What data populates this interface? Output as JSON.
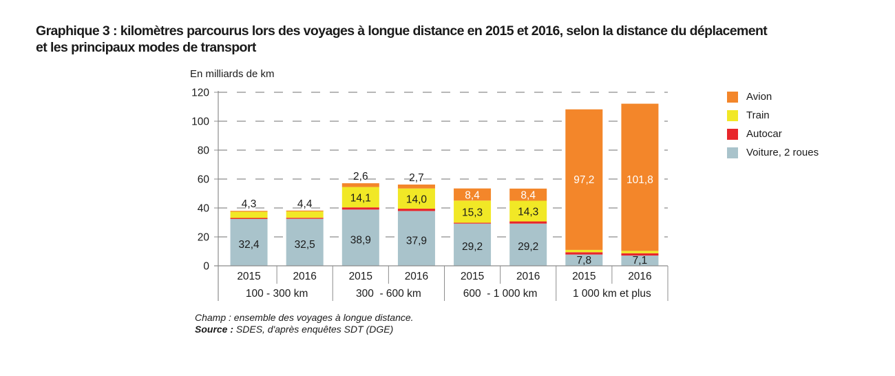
{
  "title": {
    "line1": "Graphique 3 : kilomètres parcourus lors des voyages à longue distance en 2015 et 2016, selon la distance du déplacement",
    "line2": "et les principaux modes de transport"
  },
  "notes": {
    "champ": "Champ : ensemble des voyages à longue distance.",
    "source_label": "Source :",
    "source_text": " SDES, d'après enquêtes SDT (DGE)"
  },
  "chart_data": {
    "type": "bar",
    "stacked": true,
    "title": "Graphique 3 : kilomètres parcourus lors des voyages à longue distance en 2015 et 2016, selon la distance du déplacement et les principaux modes de transport",
    "ylabel": "En milliards de km",
    "xlabel": "",
    "ylim": [
      0,
      120
    ],
    "yticks": [
      0,
      20,
      40,
      60,
      80,
      100,
      120
    ],
    "grid": true,
    "legend_position": "right",
    "groups": [
      "100 - 300 km",
      "300  - 600 km",
      "600  - 1 000 km",
      "1 000 km et plus"
    ],
    "categories": [
      "2015",
      "2016",
      "2015",
      "2016",
      "2015",
      "2016",
      "2015",
      "2016"
    ],
    "category_group": [
      0,
      0,
      1,
      1,
      2,
      2,
      3,
      3
    ],
    "series": [
      {
        "name": "Voiture, 2 roues",
        "color": "#a9c3cb",
        "values": [
          32.4,
          32.5,
          38.9,
          37.9,
          29.2,
          29.2,
          7.8,
          7.1
        ],
        "labeled": [
          true,
          true,
          true,
          true,
          true,
          true,
          true,
          true
        ],
        "label_color": "#1a1a1a"
      },
      {
        "name": "Autocar",
        "color": "#e8262b",
        "values": [
          0.7,
          0.7,
          1.5,
          1.6,
          0.6,
          1.5,
          1.6,
          1.6
        ],
        "labeled": [
          false,
          false,
          false,
          false,
          false,
          false,
          false,
          false
        ],
        "label_color": "#1a1a1a"
      },
      {
        "name": "Train",
        "color": "#f1e826",
        "values": [
          4.3,
          4.4,
          14.1,
          14.0,
          15.3,
          14.3,
          1.6,
          1.6
        ],
        "labeled": [
          true,
          true,
          true,
          true,
          true,
          true,
          false,
          false
        ],
        "label_color": "#1a1a1a"
      },
      {
        "name": "Avion",
        "color": "#f3862a",
        "values": [
          0.6,
          0.6,
          2.6,
          2.7,
          8.4,
          8.4,
          97.2,
          101.8
        ],
        "labeled": [
          false,
          false,
          true,
          true,
          true,
          true,
          true,
          true
        ],
        "label_color": "#ffffff"
      }
    ],
    "legend_order": [
      "Avion",
      "Train",
      "Autocar",
      "Voiture, 2 roues"
    ],
    "decimal_separator": ","
  }
}
